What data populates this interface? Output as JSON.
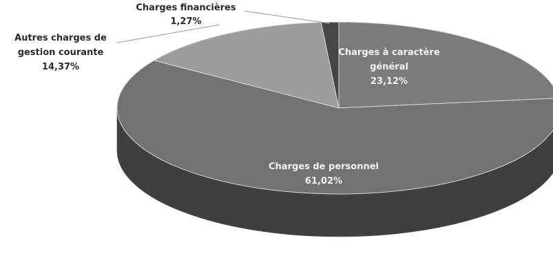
{
  "chart_data": {
    "type": "pie3d",
    "categories": [
      "Charges à caractère général",
      "Charges de personnel",
      "Autres charges de gestion courante",
      "Charges financières"
    ],
    "values": [
      23.12,
      61.02,
      14.37,
      1.27
    ],
    "value_labels": [
      "23,12%",
      "61,02%",
      "14,37%",
      "1,27%"
    ],
    "colors": [
      "#7b7b7b",
      "#727272",
      "#9c9c9c",
      "#454545"
    ]
  }
}
